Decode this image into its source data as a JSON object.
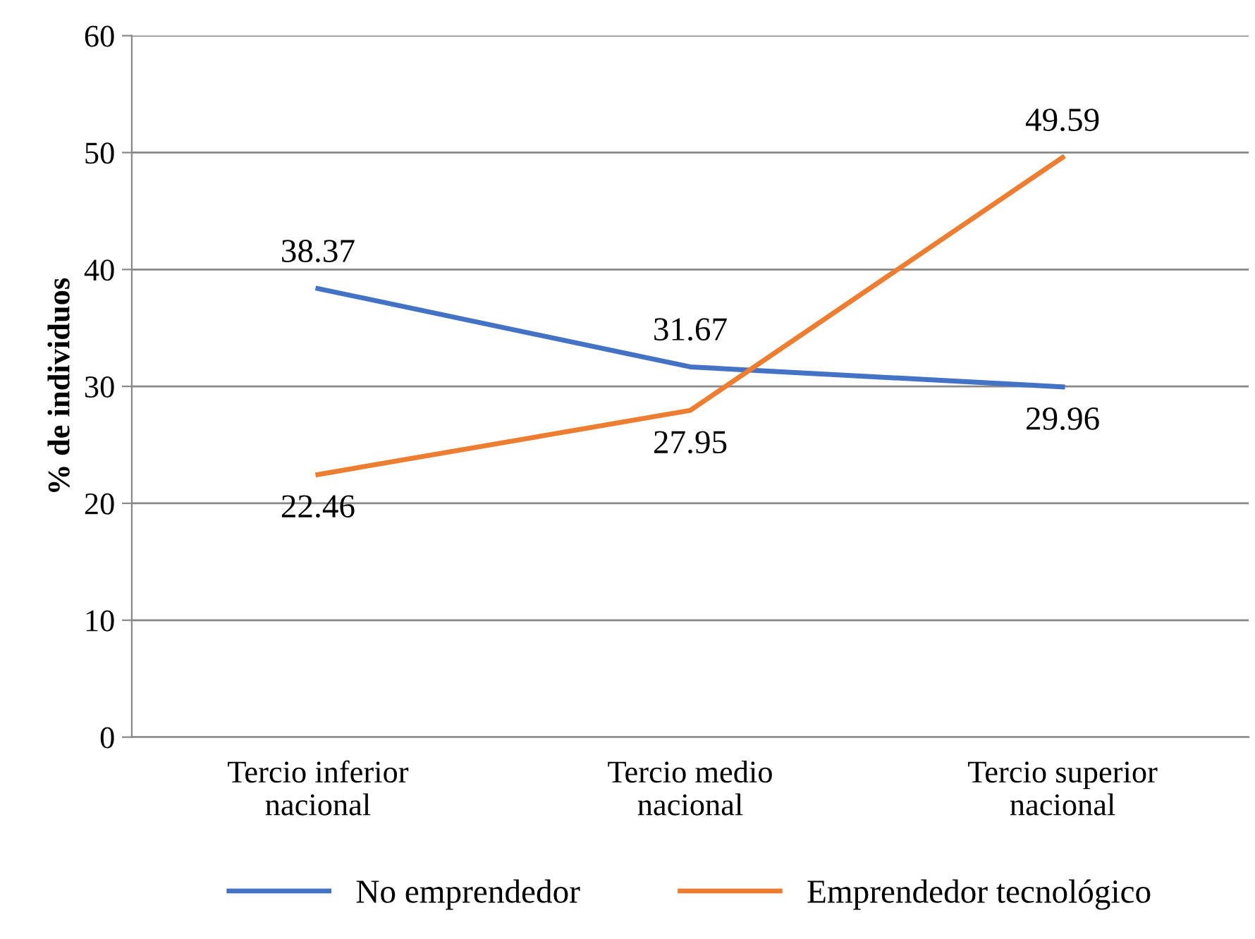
{
  "chart_data": {
    "type": "line",
    "ylabel": "% de individuos",
    "categories": [
      "Tercio inferior\nnacional",
      "Tercio medio\nnacional",
      "Tercio superior\nnacional"
    ],
    "series": [
      {
        "name": "No emprendedor",
        "color": "#4472c4",
        "values": [
          38.37,
          31.67,
          29.96
        ]
      },
      {
        "name": "Emprendedor tecnológico",
        "color": "#ed7d31",
        "values": [
          22.46,
          27.95,
          49.59
        ]
      }
    ],
    "ylim": [
      0,
      60
    ],
    "yticks": [
      0,
      10,
      20,
      30,
      40,
      50,
      60
    ],
    "grid": "y",
    "legend": "bottom",
    "data_labels": true,
    "marker": "none",
    "line_style": "solid"
  }
}
